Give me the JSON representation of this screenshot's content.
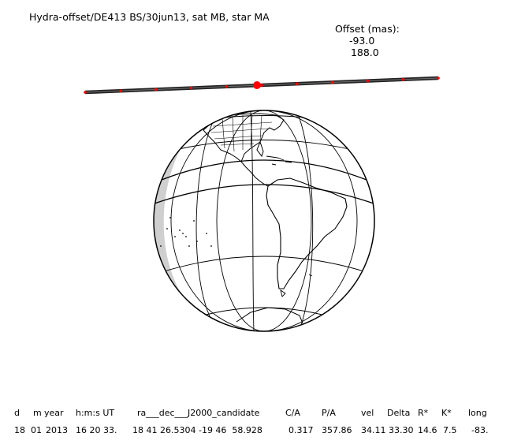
{
  "header": {
    "title": "Hydra-offset/DE413 BS/30jun13, sat MB, star MA",
    "offset_label": "Offset (mas):",
    "offset_ra": "-93.0",
    "offset_dec": "188.0"
  },
  "track": {
    "line_color": "#222222",
    "tick_color": "#ff0000",
    "center_color": "#ff0000"
  },
  "globe": {
    "outline_color": "#000000",
    "shadow_color": "#c8c8c8",
    "land_outline": "black"
  },
  "table": {
    "columns": [
      {
        "key": "d",
        "label": "d",
        "value": "18"
      },
      {
        "key": "m",
        "label": "m",
        "value": "01"
      },
      {
        "key": "year",
        "label": "year",
        "value": "2013"
      },
      {
        "key": "hms",
        "label": "h:m:s UT",
        "value": "16 20 33."
      },
      {
        "key": "radec",
        "label": "ra___dec___J2000_candidate",
        "value": "18 41 26.5304 -19 46  58.928"
      },
      {
        "key": "ca",
        "label": "C/A",
        "value": "0.317"
      },
      {
        "key": "pa",
        "label": "P/A",
        "value": "357.86"
      },
      {
        "key": "vel",
        "label": "vel",
        "value": "34.11"
      },
      {
        "key": "delta",
        "label": "Delta",
        "value": "33.30"
      },
      {
        "key": "rstar",
        "label": "R*",
        "value": "14.6"
      },
      {
        "key": "kstar",
        "label": "K*",
        "value": "7.5"
      },
      {
        "key": "long",
        "label": "long",
        "value": "-83."
      }
    ]
  }
}
